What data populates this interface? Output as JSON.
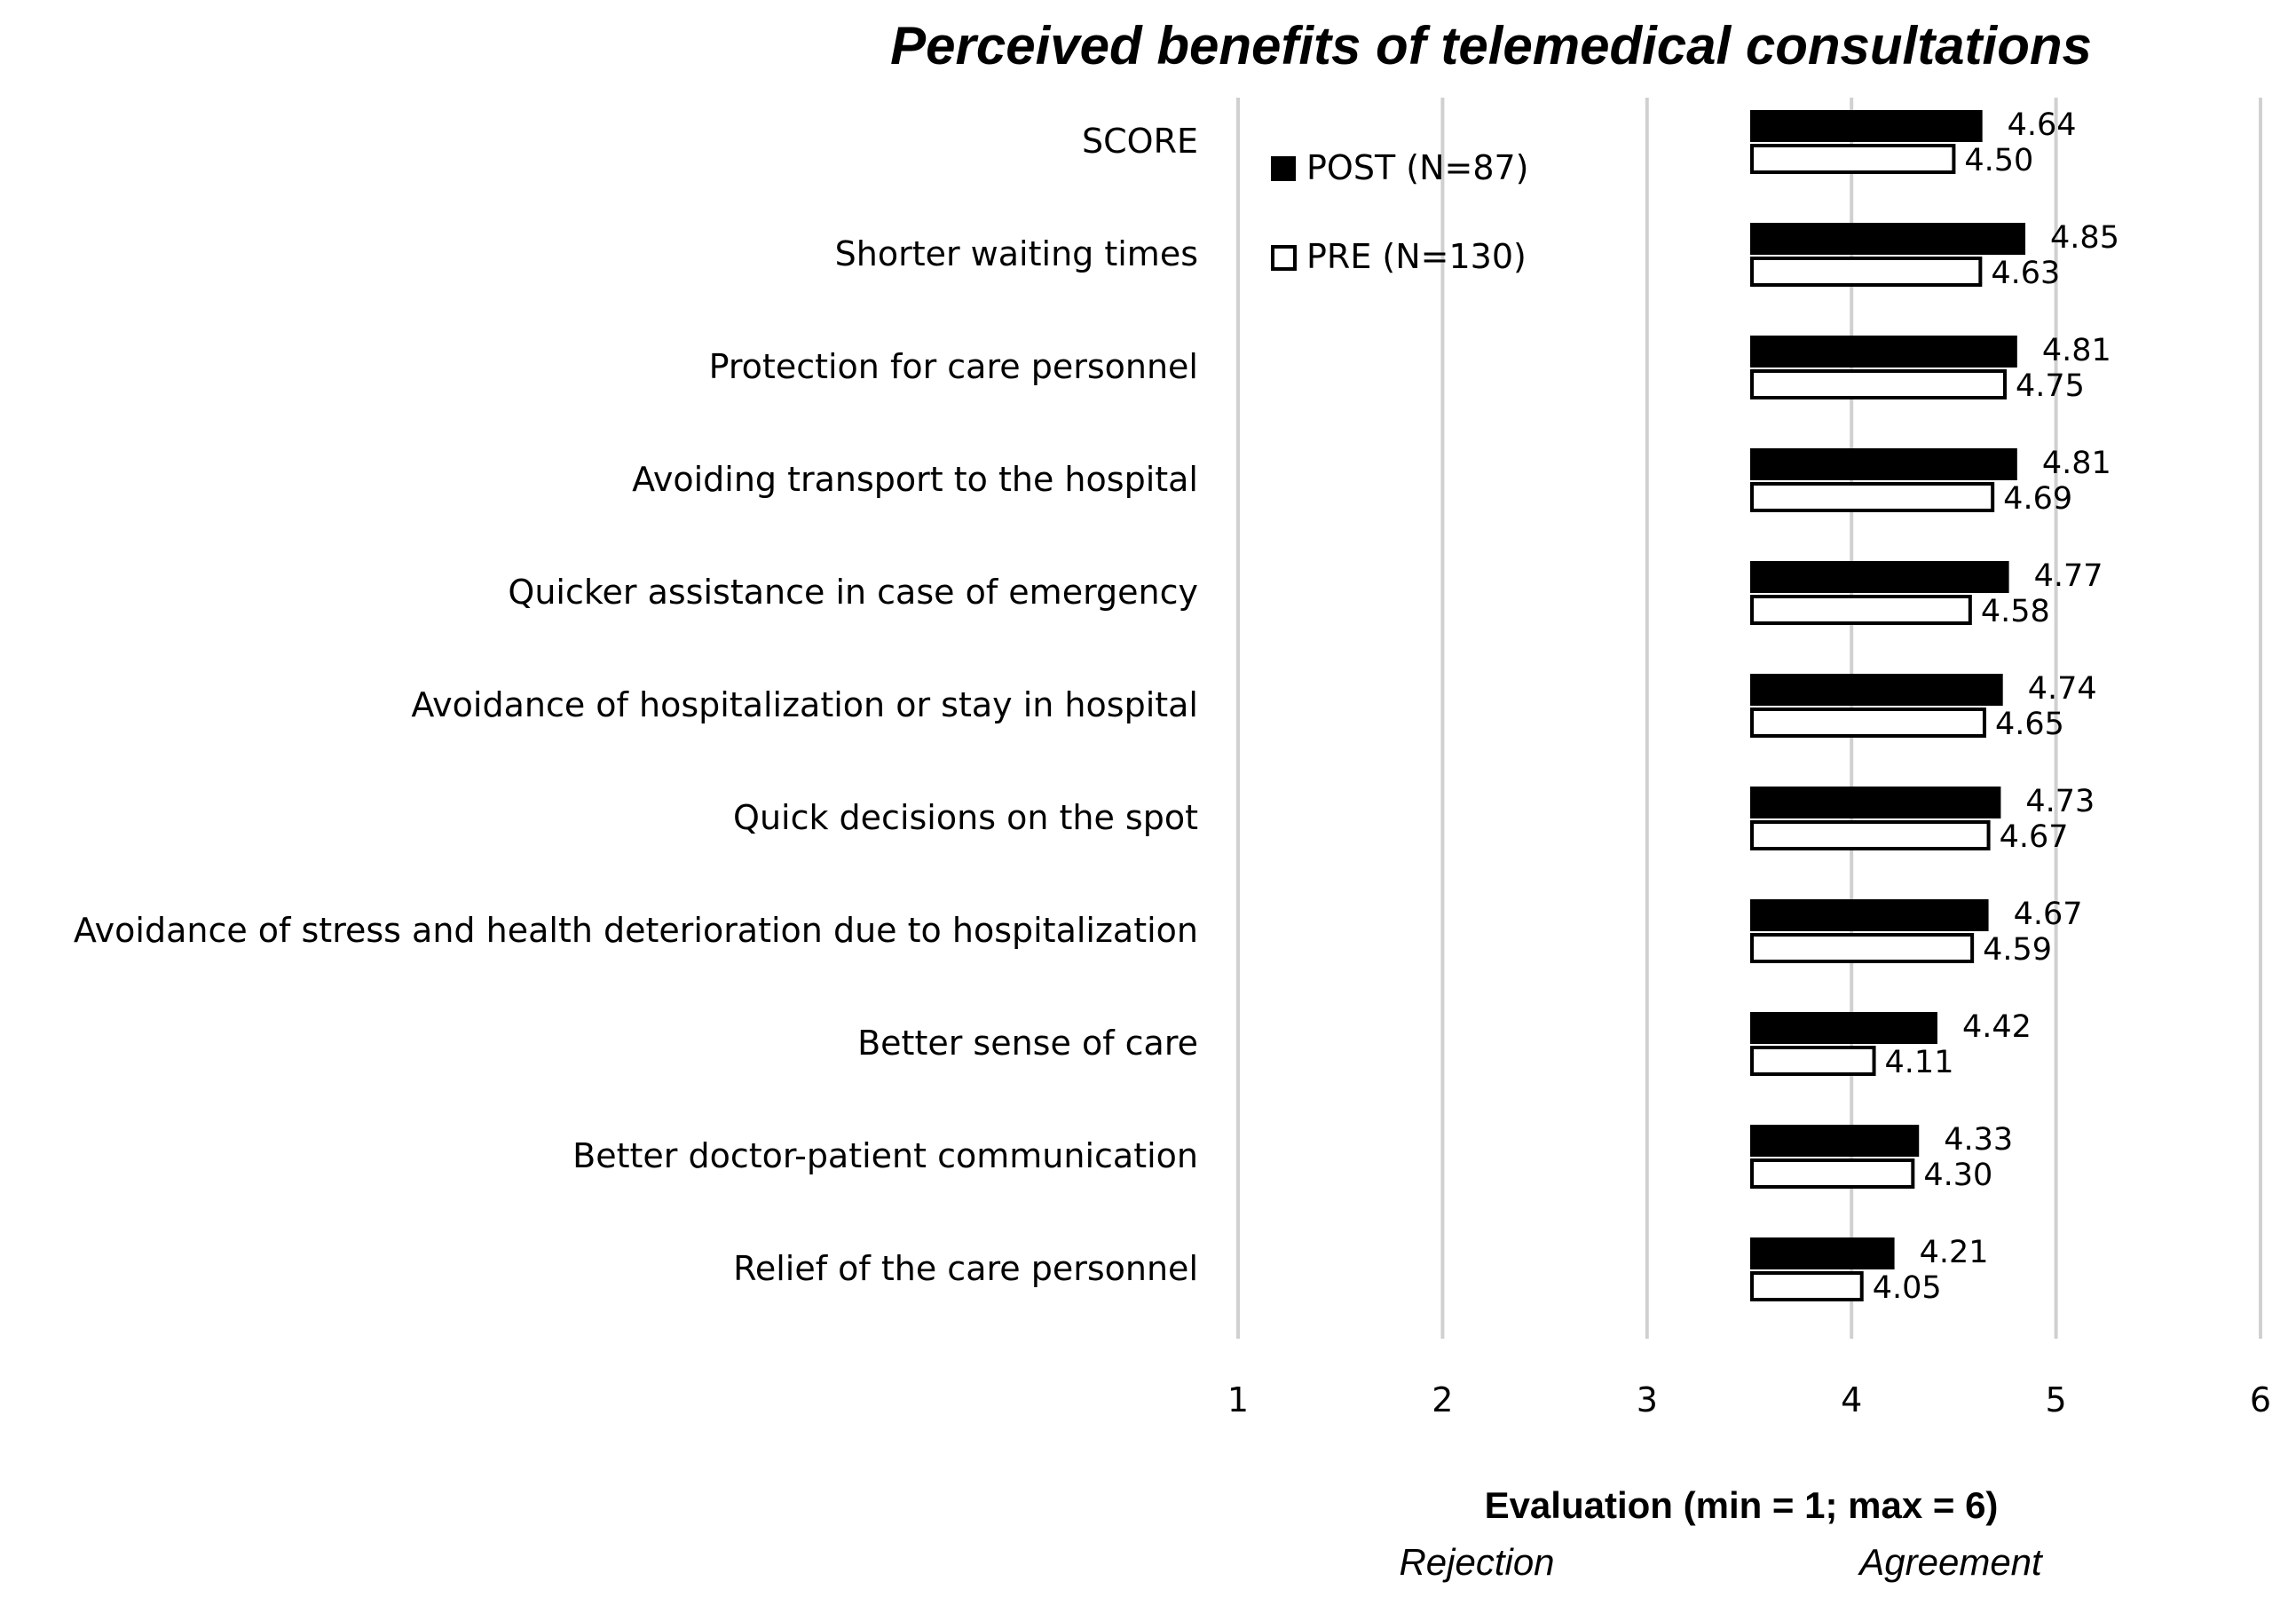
{
  "chart_data": {
    "type": "bar",
    "orientation": "horizontal",
    "title": "Perceived benefits of telemedical consultations",
    "xlabel": "Evaluation (min = 1; max = 6)",
    "scale_poles": {
      "left": "Rejection",
      "right": "Agreement"
    },
    "xlim": [
      1,
      6
    ],
    "xticks": [
      1,
      2,
      3,
      4,
      5,
      6
    ],
    "grid": true,
    "legend_position": "top-left",
    "categories": [
      "SCORE",
      "Shorter waiting times",
      "Protection for care personnel",
      "Avoiding transport to the hospital",
      "Quicker assistance in case of emergency",
      "Avoidance of hospitalization or stay in hospital",
      "Quick decisions on the spot",
      "Avoidance of stress and health deterioration due to hospitalization",
      "Better sense of care",
      "Better doctor-patient communication",
      "Relief of the care personnel"
    ],
    "series": [
      {
        "name": "POST (N=87)",
        "color": "#000000",
        "fill": "solid",
        "values": [
          4.64,
          4.85,
          4.81,
          4.81,
          4.77,
          4.74,
          4.73,
          4.67,
          4.42,
          4.33,
          4.21
        ],
        "labels": [
          "4.64",
          "4.85",
          "4.81",
          "4.81",
          "4.77",
          "4.74",
          "4.73",
          "4.67",
          "4.42",
          "4.33",
          "4.21"
        ]
      },
      {
        "name": "PRE (N=130)",
        "color": "#000000",
        "fill": "outline",
        "values": [
          4.5,
          4.63,
          4.75,
          4.69,
          4.58,
          4.65,
          4.67,
          4.59,
          4.11,
          4.3,
          4.05
        ],
        "labels": [
          "4.50",
          "4.63",
          "4.75",
          "4.69",
          "4.58",
          "4.65",
          "4.67",
          "4.59",
          "4.11",
          "4.30",
          "4.05"
        ]
      }
    ]
  },
  "colors": {
    "gridline": "#d0d0d0",
    "bar": "#000000",
    "background": "#ffffff"
  }
}
